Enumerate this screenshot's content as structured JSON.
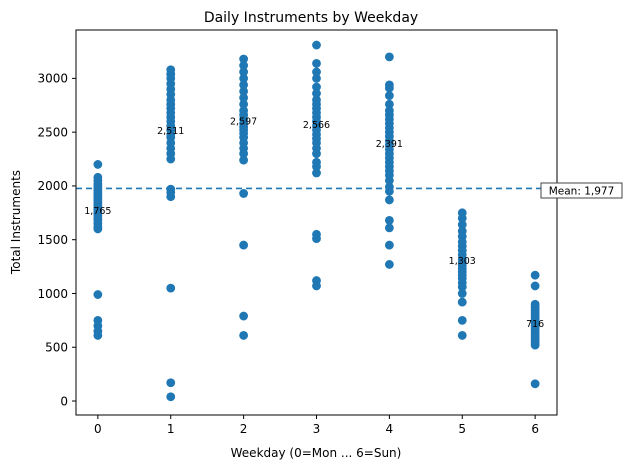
{
  "chart_data": {
    "type": "scatter",
    "title": "Daily Instruments by Weekday",
    "xlabel": "Weekday (0=Mon ... 6=Sun)",
    "ylabel": "Total Instruments",
    "xlim": [
      -0.3,
      6.3
    ],
    "ylim": [
      -130,
      3450
    ],
    "xticks": [
      0,
      1,
      2,
      3,
      4,
      5,
      6
    ],
    "yticks": [
      0,
      500,
      1000,
      1500,
      2000,
      2500,
      3000
    ],
    "grid": false,
    "point_color": "#1f77b4",
    "mean": {
      "value": 1977,
      "label": "Mean: 1,977",
      "color": "#1f77b4"
    },
    "data_labels": [
      {
        "x": 0,
        "y": 1765,
        "text": "1,765"
      },
      {
        "x": 1,
        "y": 2511,
        "text": "2,511"
      },
      {
        "x": 2,
        "y": 2597,
        "text": "2,597"
      },
      {
        "x": 3,
        "y": 2566,
        "text": "2,566"
      },
      {
        "x": 4,
        "y": 2391,
        "text": "2,391"
      },
      {
        "x": 5,
        "y": 1303,
        "text": "1,303"
      },
      {
        "x": 6,
        "y": 716,
        "text": "716"
      }
    ],
    "series": [
      {
        "x": 0,
        "values": [
          2200,
          2080,
          2050,
          2020,
          2000,
          1980,
          1960,
          1940,
          1920,
          1900,
          1880,
          1860,
          1840,
          1820,
          1800,
          1780,
          1760,
          1740,
          1720,
          1700,
          1680,
          1650,
          1620,
          1600,
          990,
          750,
          700,
          650,
          610
        ]
      },
      {
        "x": 1,
        "values": [
          3080,
          3040,
          3000,
          2950,
          2900,
          2850,
          2800,
          2760,
          2720,
          2680,
          2640,
          2600,
          2560,
          2520,
          2480,
          2450,
          2400,
          2350,
          2300,
          2250,
          1970,
          1940,
          1900,
          1050,
          170,
          40
        ]
      },
      {
        "x": 2,
        "values": [
          3180,
          3120,
          3060,
          3000,
          2940,
          2880,
          2820,
          2760,
          2700,
          2660,
          2620,
          2580,
          2550,
          2520,
          2490,
          2450,
          2400,
          2350,
          2300,
          2240,
          1930,
          1450,
          790,
          610
        ]
      },
      {
        "x": 3,
        "values": [
          3310,
          3140,
          3060,
          3000,
          2920,
          2860,
          2800,
          2760,
          2720,
          2680,
          2640,
          2600,
          2560,
          2520,
          2480,
          2440,
          2400,
          2350,
          2300,
          2220,
          2180,
          2120,
          1550,
          1510,
          1120,
          1070
        ]
      },
      {
        "x": 4,
        "values": [
          3200,
          2940,
          2910,
          2840,
          2760,
          2700,
          2660,
          2620,
          2580,
          2540,
          2500,
          2460,
          2420,
          2380,
          2340,
          2300,
          2260,
          2220,
          2180,
          2140,
          2100,
          2050,
          1990,
          1950,
          1870,
          1680,
          1610,
          1450,
          1270
        ]
      },
      {
        "x": 5,
        "values": [
          1750,
          1700,
          1640,
          1580,
          1530,
          1480,
          1440,
          1400,
          1360,
          1320,
          1290,
          1260,
          1230,
          1200,
          1170,
          1140,
          1100,
          1060,
          1000,
          920,
          750,
          610
        ]
      },
      {
        "x": 6,
        "values": [
          1170,
          1070,
          900,
          880,
          860,
          840,
          820,
          800,
          780,
          760,
          740,
          720,
          700,
          680,
          660,
          640,
          620,
          600,
          580,
          560,
          540,
          520,
          160
        ]
      }
    ]
  }
}
